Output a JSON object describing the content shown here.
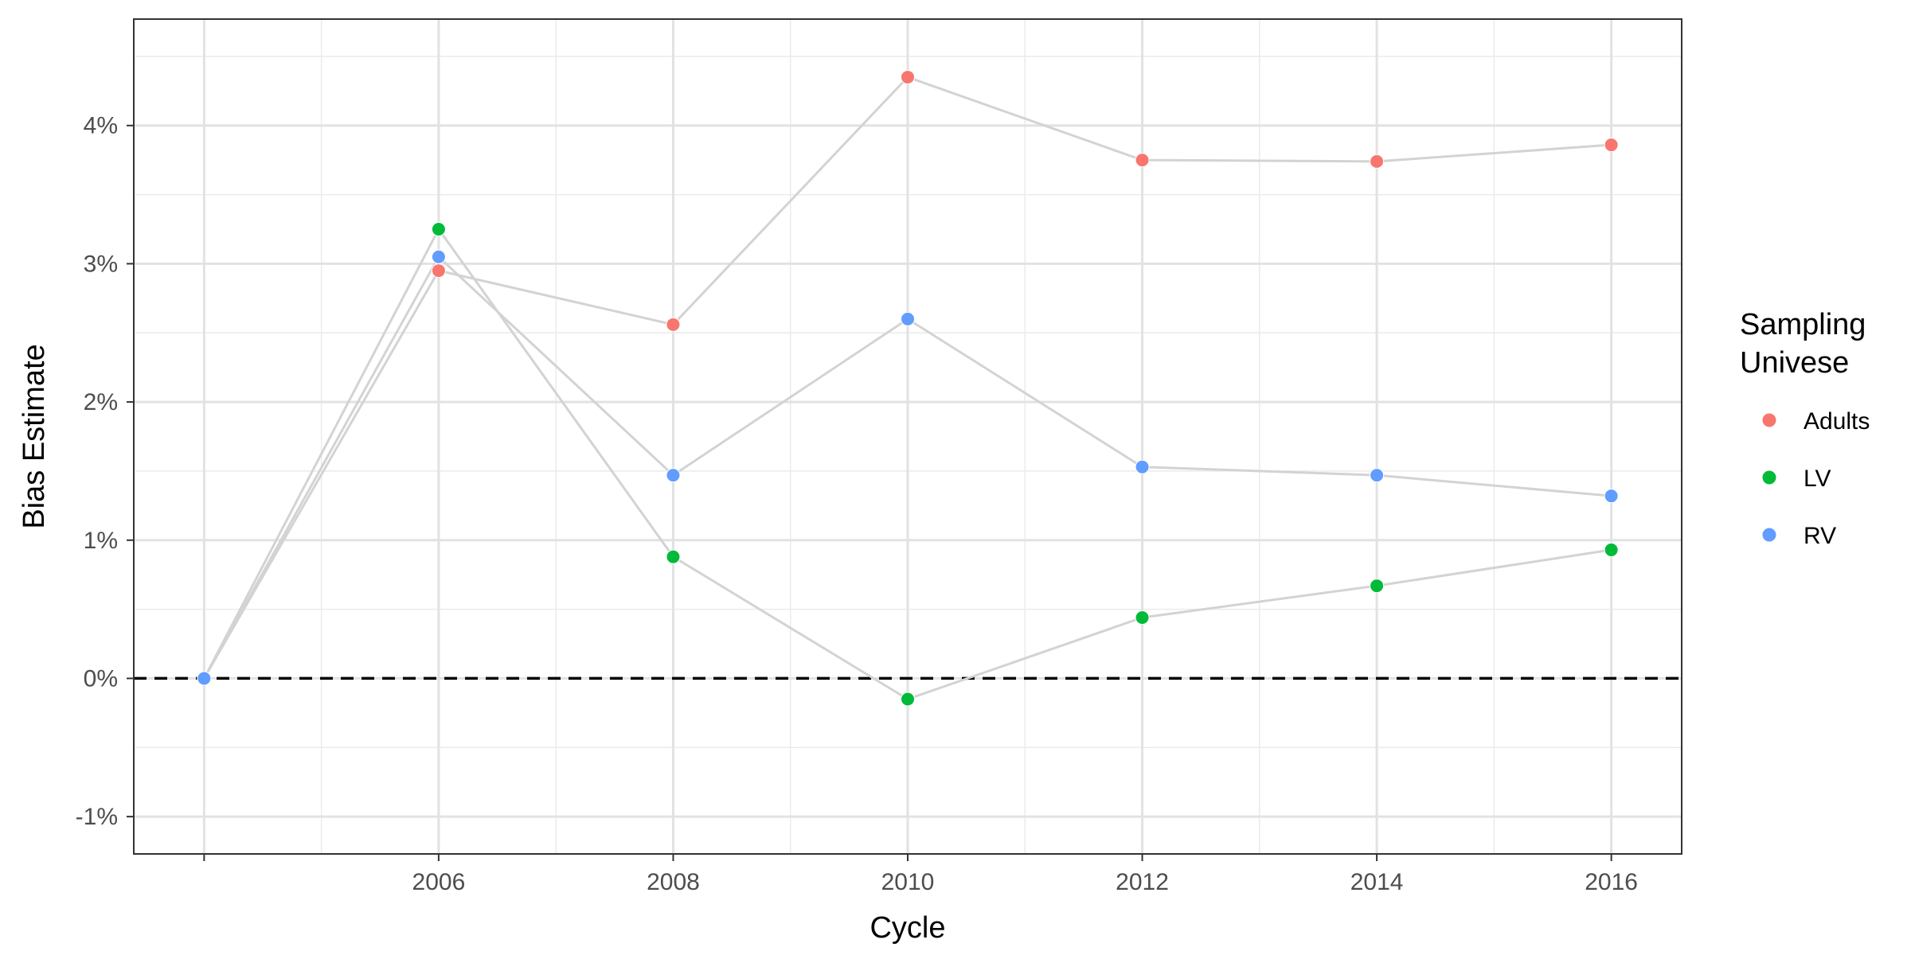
{
  "chart_data": {
    "type": "line",
    "title": "",
    "xlabel": "Cycle",
    "ylabel": "Bias Estimate",
    "x": [
      2004,
      2006,
      2008,
      2010,
      2012,
      2014,
      2016
    ],
    "x_tick_labels": [
      "",
      "2006",
      "2008",
      "2010",
      "2012",
      "2014",
      "2016"
    ],
    "y_tick_values": [
      -0.01,
      0,
      0.01,
      0.02,
      0.03,
      0.04
    ],
    "y_tick_labels": [
      "-1%",
      "0%",
      "1%",
      "2%",
      "3%",
      "4%"
    ],
    "xlim": [
      2003.4,
      2016.6
    ],
    "ylim": [
      -0.0127,
      0.0477
    ],
    "grid": true,
    "reference_line": {
      "y": 0,
      "style": "dashed",
      "color": "#000000"
    },
    "connector_color": "#d3d3d3",
    "legend": {
      "title": "Sampling Univese",
      "title_lines": [
        "Sampling",
        "Univese"
      ],
      "position": "right"
    },
    "series": [
      {
        "name": "Adults",
        "color": "#F8766D",
        "values": [
          0,
          0.0295,
          0.0256,
          0.0435,
          0.0375,
          0.0374,
          0.0386
        ]
      },
      {
        "name": "LV",
        "color": "#00BA38",
        "values": [
          0,
          0.0325,
          0.0088,
          -0.0015,
          0.0044,
          0.0067,
          0.0093
        ]
      },
      {
        "name": "RV",
        "color": "#619CFF",
        "values": [
          0,
          0.0305,
          0.0147,
          0.026,
          0.0153,
          0.0147,
          0.0132
        ]
      }
    ]
  }
}
